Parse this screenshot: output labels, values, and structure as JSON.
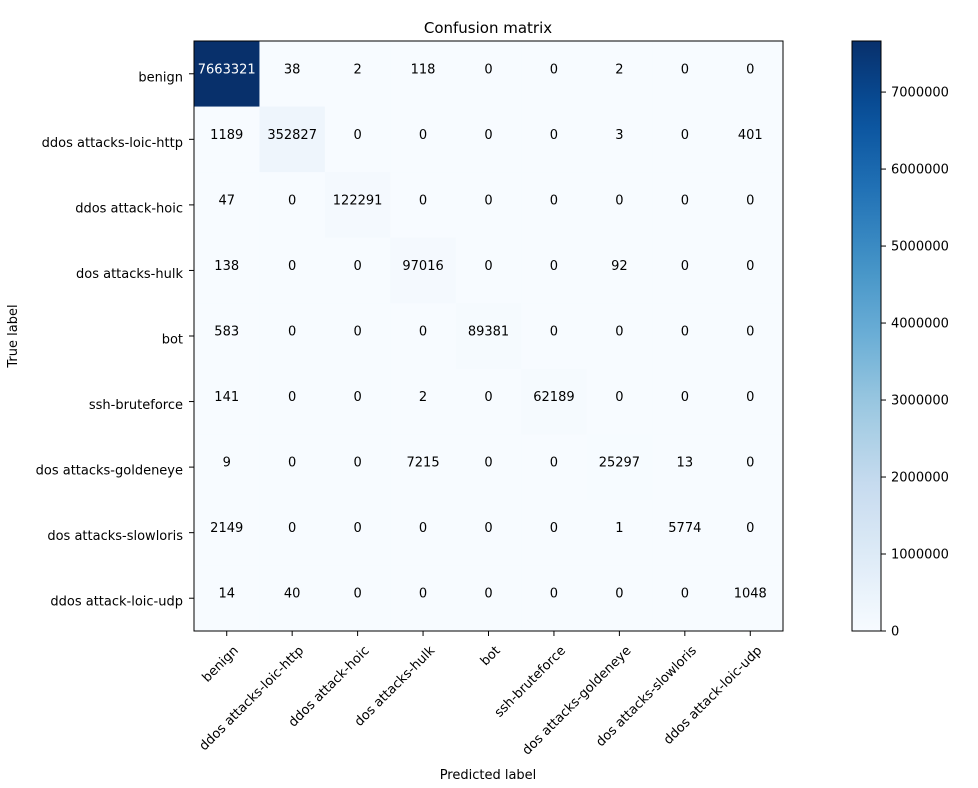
{
  "chart_data": {
    "type": "heatmap",
    "title": "Confusion matrix",
    "xlabel": "Predicted label",
    "ylabel": "True label",
    "x_categories": [
      "benign",
      "ddos attacks-loic-http",
      "ddos attack-hoic",
      "dos attacks-hulk",
      "bot",
      "ssh-bruteforce",
      "dos attacks-goldeneye",
      "dos attacks-slowloris",
      "ddos attack-loic-udp"
    ],
    "y_categories": [
      "benign",
      "ddos attacks-loic-http",
      "ddos attack-hoic",
      "dos attacks-hulk",
      "bot",
      "ssh-bruteforce",
      "dos attacks-goldeneye",
      "dos attacks-slowloris",
      "ddos attack-loic-udp"
    ],
    "values": [
      [
        7663321,
        38,
        2,
        118,
        0,
        0,
        2,
        0,
        0
      ],
      [
        1189,
        352827,
        0,
        0,
        0,
        0,
        3,
        0,
        401
      ],
      [
        47,
        0,
        122291,
        0,
        0,
        0,
        0,
        0,
        0
      ],
      [
        138,
        0,
        0,
        97016,
        0,
        0,
        92,
        0,
        0
      ],
      [
        583,
        0,
        0,
        0,
        89381,
        0,
        0,
        0,
        0
      ],
      [
        141,
        0,
        0,
        2,
        0,
        62189,
        0,
        0,
        0
      ],
      [
        9,
        0,
        0,
        7215,
        0,
        0,
        25297,
        13,
        0
      ],
      [
        2149,
        0,
        0,
        0,
        0,
        0,
        1,
        5774,
        0
      ],
      [
        14,
        40,
        0,
        0,
        0,
        0,
        0,
        0,
        1048
      ]
    ],
    "colormap": "Blues",
    "colorbar": {
      "min": 0,
      "max": 7663321,
      "ticks": [
        0,
        1000000,
        2000000,
        3000000,
        4000000,
        5000000,
        6000000,
        7000000
      ],
      "tick_labels": [
        "0",
        "1000000",
        "2000000",
        "3000000",
        "4000000",
        "5000000",
        "6000000",
        "7000000"
      ]
    },
    "grid": false
  }
}
